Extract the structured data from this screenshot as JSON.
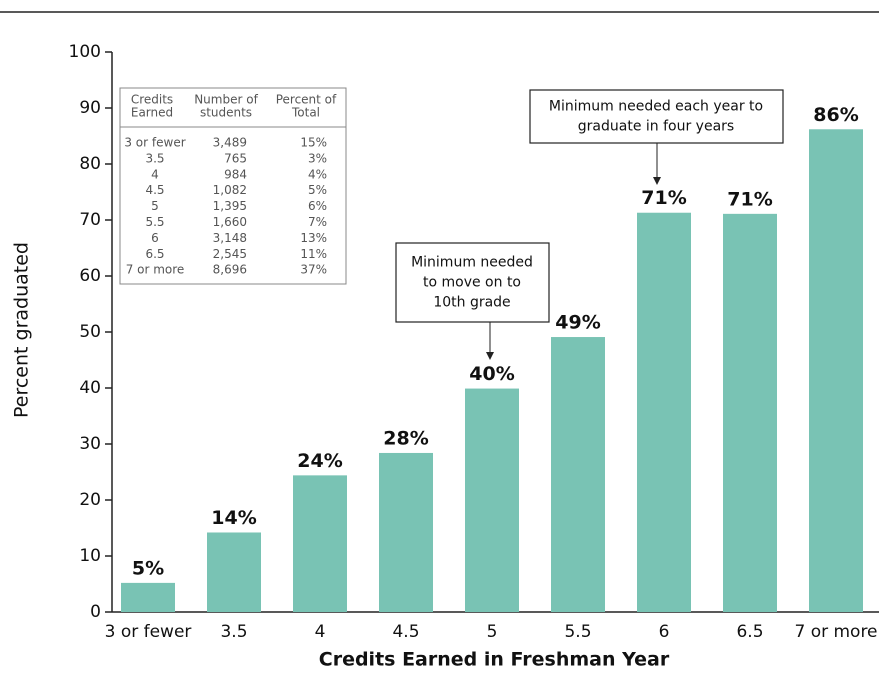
{
  "chart_data": {
    "type": "bar",
    "categories": [
      "3 or fewer",
      "3.5",
      "4",
      "4.5",
      "5",
      "5.5",
      "6",
      "6.5",
      "7 or more"
    ],
    "values": [
      5.2,
      14.2,
      24.4,
      28.4,
      39.9,
      49.1,
      71.3,
      71.1,
      86.2
    ],
    "value_labels": [
      "5%",
      "14%",
      "24%",
      "28%",
      "40%",
      "49%",
      "71%",
      "71%",
      "86%"
    ],
    "color": "#79c3b4",
    "ylim": [
      0,
      100
    ],
    "yticks": [
      0,
      10,
      20,
      30,
      40,
      50,
      60,
      70,
      80,
      90,
      100
    ],
    "grid": false,
    "xlabel": "Credits Earned in Freshman Year",
    "ylabel": "Percent graduated",
    "annotations": [
      {
        "lines": [
          "Minimum needed",
          "to move on to",
          "10th grade"
        ]
      },
      {
        "lines": [
          "Minimum needed each year to",
          "graduate in four years"
        ]
      }
    ]
  },
  "inset_table": {
    "header": [
      [
        "Credits",
        "Earned"
      ],
      [
        "Number of",
        "students"
      ],
      [
        "Percent of",
        "Total"
      ]
    ],
    "rows": [
      [
        "3 or fewer",
        "3,489",
        "15%"
      ],
      [
        "3.5",
        "765",
        "3%"
      ],
      [
        "4",
        "984",
        "4%"
      ],
      [
        "4.5",
        "1,082",
        "5%"
      ],
      [
        "5",
        "1,395",
        "6%"
      ],
      [
        "5.5",
        "1,660",
        "7%"
      ],
      [
        "6",
        "3,148",
        "13%"
      ],
      [
        "6.5",
        "2,545",
        "11%"
      ],
      [
        "7 or more",
        "8,696",
        "37%"
      ]
    ]
  }
}
